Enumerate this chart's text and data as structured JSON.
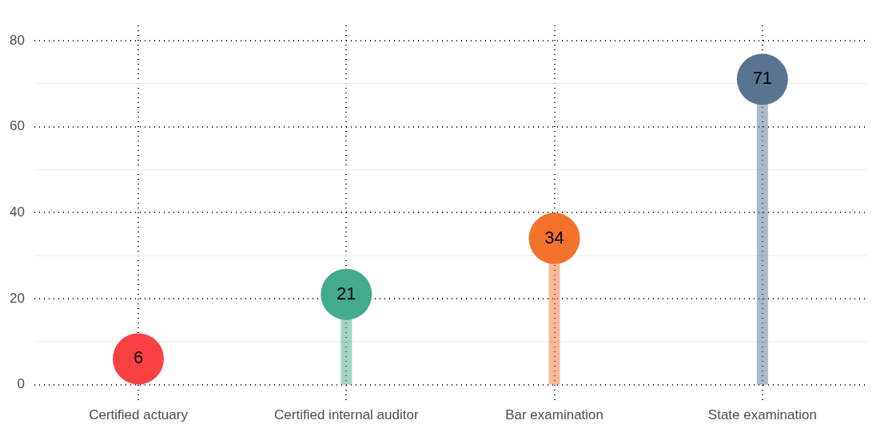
{
  "chart_data": {
    "type": "lollipop",
    "categories": [
      "Certified actuary",
      "Certified internal auditor",
      "Bar examination",
      "State examination"
    ],
    "values": [
      6,
      21,
      34,
      71
    ],
    "colors": [
      "#f94144",
      "#43aa8b",
      "#f3722c",
      "#577590"
    ],
    "ylim": [
      -3.5,
      83.5
    ],
    "yticks": [
      0,
      20,
      40,
      60,
      80
    ],
    "grid": true,
    "data_labels": true
  }
}
